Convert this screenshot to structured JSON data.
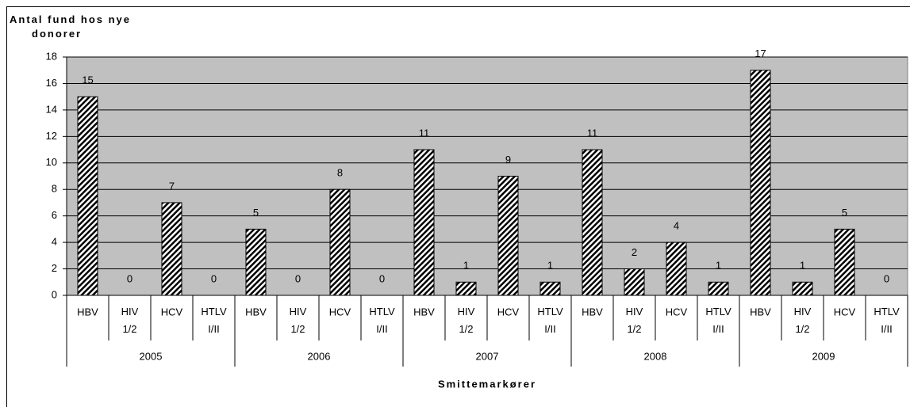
{
  "chart_data": {
    "type": "bar",
    "y_axis_label": "Antal fund hos nye donorer",
    "x_axis_label": "Smittemarkører",
    "categories": [
      "HBV",
      "HIV 1/2",
      "HCV",
      "HTLV I/II",
      "HBV",
      "HIV 1/2",
      "HCV",
      "HTLV I/II",
      "HBV",
      "HIV 1/2",
      "HCV",
      "HTLV I/II",
      "HBV",
      "HIV 1/2",
      "HCV",
      "HTLV I/II",
      "HBV",
      "HIV 1/2",
      "HCV",
      "HTLV I/II"
    ],
    "groups": [
      "2005",
      "2006",
      "2007",
      "2008",
      "2009"
    ],
    "values": [
      15,
      0,
      7,
      0,
      5,
      0,
      8,
      0,
      11,
      1,
      9,
      1,
      11,
      2,
      4,
      1,
      17,
      1,
      5,
      0
    ],
    "color": "#000000",
    "plot_background": "#c0c0c0",
    "ylim": [
      0,
      18
    ],
    "yticks": [
      0,
      2,
      4,
      6,
      8,
      10,
      12,
      14,
      16,
      18
    ],
    "grid": true
  }
}
